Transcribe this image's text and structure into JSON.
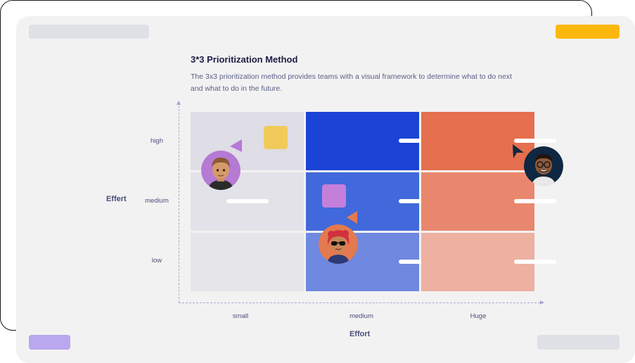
{
  "header": {
    "title": "3*3 Prioritization Method",
    "description": "The 3x3 prioritization method provides teams with a visual framework to determine  what to do next and what to do in the future."
  },
  "matrix": {
    "y_axis_title": "Effert",
    "x_axis_title": "Effort",
    "rows": [
      "high",
      "medium",
      "low"
    ],
    "columns": [
      "small",
      "medium",
      "Huge"
    ],
    "cell_colors": [
      [
        "#dfdde5",
        "#1b43d6",
        "#e56f4f"
      ],
      [
        "#e3e2e8",
        "#4169db",
        "#e9876e"
      ],
      [
        "#e6e5ea",
        "#6f88e0",
        "#edb0a1"
      ]
    ],
    "bar_cells": [
      [
        0,
        1
      ],
      [
        0,
        2
      ],
      [
        1,
        0
      ],
      [
        1,
        1
      ],
      [
        1,
        2
      ],
      [
        2,
        1
      ],
      [
        2,
        2
      ]
    ]
  },
  "colors": {
    "card": "#f2f2f2",
    "accent_yellow": "#fdb80d",
    "accent_purple": "#b9a7ef",
    "sticky_yellow": "#f0cb5a",
    "sticky_purple": "#c47fda",
    "cursor_purple": "#b879d8",
    "cursor_orange": "#e37a4f",
    "cursor_dark": "#0f2740"
  },
  "icons": {
    "avatar_1": "avatar-man-icon",
    "avatar_2": "avatar-woman-sunglasses-icon",
    "avatar_3": "avatar-man-glasses-icon",
    "cursor": "cursor-arrow-icon"
  }
}
